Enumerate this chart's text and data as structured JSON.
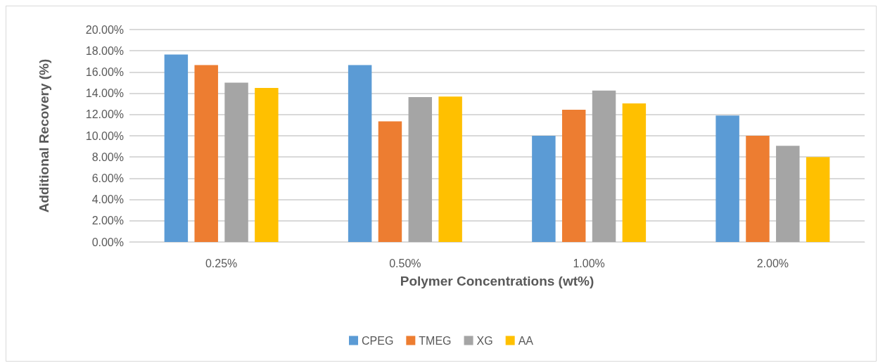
{
  "chart_data": {
    "type": "bar",
    "xlabel": "Polymer Concentrations (wt%)",
    "ylabel": "Additional Recovery (%)",
    "categories": [
      "0.25%",
      "0.50%",
      "1.00%",
      "2.00%"
    ],
    "series": [
      {
        "name": "CPEG",
        "color": "#5b9bd5",
        "values": [
          17.65,
          16.65,
          10.0,
          11.9
        ]
      },
      {
        "name": "TMEG",
        "color": "#ed7d31",
        "values": [
          16.65,
          11.35,
          12.45,
          10.0
        ]
      },
      {
        "name": "XG",
        "color": "#a5a5a5",
        "values": [
          15.0,
          13.65,
          14.25,
          9.05
        ]
      },
      {
        "name": "AA",
        "color": "#ffc000",
        "values": [
          14.5,
          13.7,
          13.05,
          8.0
        ]
      }
    ],
    "ylim": [
      0,
      20
    ],
    "yticks": [
      {
        "value": 0,
        "label": "0.00%"
      },
      {
        "value": 2,
        "label": "2.00%"
      },
      {
        "value": 4,
        "label": "4.00%"
      },
      {
        "value": 6,
        "label": "6.00%"
      },
      {
        "value": 8,
        "label": "8.00%"
      },
      {
        "value": 10,
        "label": "10.00%"
      },
      {
        "value": 12,
        "label": "12.00%"
      },
      {
        "value": 14,
        "label": "14.00%"
      },
      {
        "value": 16,
        "label": "16.00%"
      },
      {
        "value": 18,
        "label": "18.00%"
      },
      {
        "value": 20,
        "label": "20.00%"
      }
    ],
    "grid": "y",
    "legend": "bottom"
  }
}
